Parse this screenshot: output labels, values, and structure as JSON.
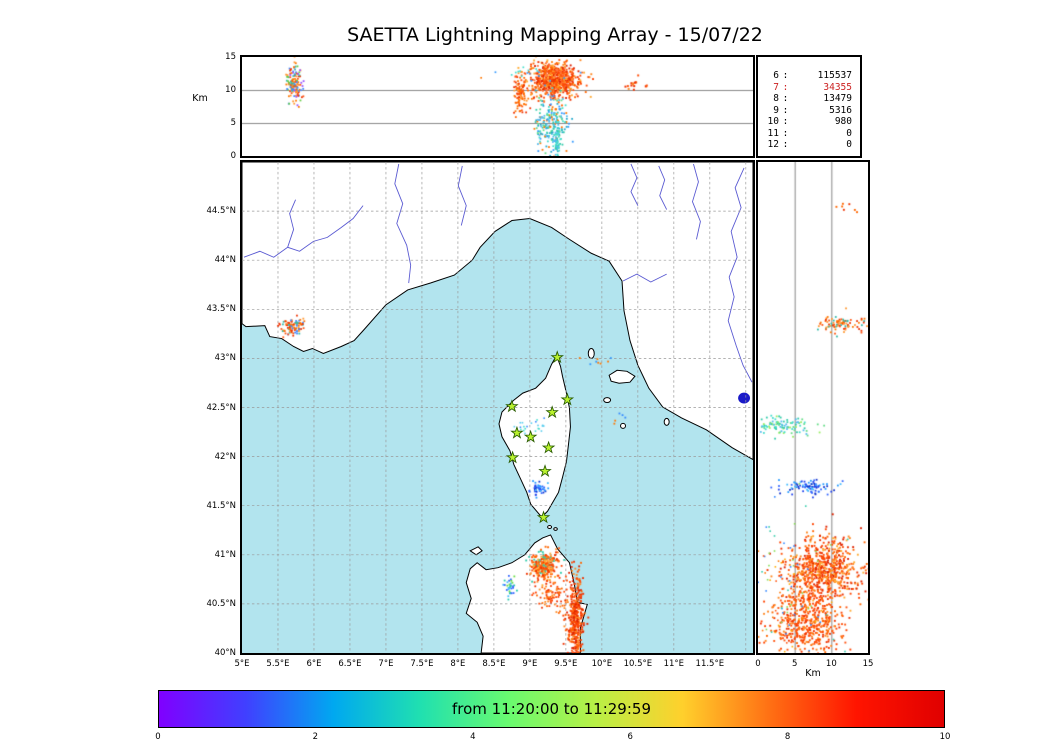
{
  "title": "SAETTA Lightning Mapping Array - 15/07/22",
  "colors": {
    "sea": "#b2e4ee",
    "land": "#ffffff",
    "coast": "#000000",
    "river": "#5a5ad2",
    "lake": "#1a1ac8",
    "grid": "#999999",
    "star_fill": "#baf22e",
    "star_edge": "#2a5d00",
    "stats_highlight": "#cc2222"
  },
  "top_panel": {
    "ylabel": "Km",
    "yticks": [
      {
        "label": "15",
        "alt": 15
      },
      {
        "label": "10",
        "alt": 10
      },
      {
        "label": "5",
        "alt": 5
      },
      {
        "label": "0",
        "alt": 0
      }
    ],
    "grid_alts": [
      5,
      10
    ]
  },
  "right_panel": {
    "xlabel": "Km",
    "xticks": [
      {
        "label": "0",
        "alt": 0
      },
      {
        "label": "5",
        "alt": 5
      },
      {
        "label": "10",
        "alt": 10
      },
      {
        "label": "15",
        "alt": 15
      }
    ],
    "grid_alts": [
      5,
      10
    ]
  },
  "stats": {
    "rows": [
      {
        "label": "6",
        "value": "115537",
        "highlight": false
      },
      {
        "label": "7",
        "value": "34355",
        "highlight": true
      },
      {
        "label": "8",
        "value": "13479",
        "highlight": false
      },
      {
        "label": "9",
        "value": "5316",
        "highlight": false
      },
      {
        "label": "10",
        "value": "980",
        "highlight": false
      },
      {
        "label": "11",
        "value": "0",
        "highlight": false
      },
      {
        "label": "12",
        "value": "0",
        "highlight": false
      }
    ]
  },
  "map": {
    "lon_ticks": [
      {
        "label": "5°E",
        "lon": 5
      },
      {
        "label": "5.5°E",
        "lon": 5.5
      },
      {
        "label": "6°E",
        "lon": 6
      },
      {
        "label": "6.5°E",
        "lon": 6.5
      },
      {
        "label": "7°E",
        "lon": 7
      },
      {
        "label": "7.5°E",
        "lon": 7.5
      },
      {
        "label": "8°E",
        "lon": 8
      },
      {
        "label": "8.5°E",
        "lon": 8.5
      },
      {
        "label": "9°E",
        "lon": 9
      },
      {
        "label": "9.5°E",
        "lon": 9.5
      },
      {
        "label": "10°E",
        "lon": 10
      },
      {
        "label": "10.5°E",
        "lon": 10.5
      },
      {
        "label": "11°E",
        "lon": 11
      },
      {
        "label": "11.5°E",
        "lon": 11.5
      }
    ],
    "lat_ticks": [
      {
        "label": "44.5°N",
        "lat": 44.5
      },
      {
        "label": "44°N",
        "lat": 44
      },
      {
        "label": "43.5°N",
        "lat": 43.5
      },
      {
        "label": "43°N",
        "lat": 43
      },
      {
        "label": "42.5°N",
        "lat": 42.5
      },
      {
        "label": "42°N",
        "lat": 42
      },
      {
        "label": "41.5°N",
        "lat": 41.5
      },
      {
        "label": "41°N",
        "lat": 41
      },
      {
        "label": "40.5°N",
        "lat": 40.5
      },
      {
        "label": "40°N",
        "lat": 40
      }
    ]
  },
  "colorbar": {
    "label": "from 11:20:00 to 11:29:59",
    "range": [
      0,
      10
    ],
    "ticks": [
      {
        "label": "0",
        "value": 0
      },
      {
        "label": "2",
        "value": 2
      },
      {
        "label": "4",
        "value": 4
      },
      {
        "label": "6",
        "value": 6
      },
      {
        "label": "8",
        "value": 8
      },
      {
        "label": "10",
        "value": 10
      }
    ],
    "gradient": [
      "#8000ff",
      "#4040ff",
      "#00a8f0",
      "#20e0b0",
      "#68fa70",
      "#b8f046",
      "#ffd02c",
      "#ff7014",
      "#ff1400",
      "#e00000"
    ]
  },
  "chart_data": {
    "type": "scatter",
    "description": "Lightning Mapping Array sources: map view (lon/lat), altitude-vs-longitude top view, altitude-vs-latitude side view, colored by time over the 10-minute window.",
    "axes": {
      "lon_range": [
        5.0,
        12.1
      ],
      "lat_range": [
        40.0,
        45.0
      ],
      "alt_range_km": [
        0,
        15
      ]
    },
    "time_window": {
      "start": "11:20:00",
      "end": "11:29:59",
      "colorbar_minutes": [
        0,
        10
      ]
    },
    "source_counts_by_min_stations": [
      {
        "stations": 6,
        "count": 115537
      },
      {
        "stations": 7,
        "count": 34355
      },
      {
        "stations": 8,
        "count": 13479
      },
      {
        "stations": 9,
        "count": 5316
      },
      {
        "stations": 10,
        "count": 980
      },
      {
        "stations": 11,
        "count": 0
      },
      {
        "stations": 12,
        "count": 0
      }
    ],
    "stations_lonlat": [
      [
        9.38,
        43.01
      ],
      [
        9.52,
        42.58
      ],
      [
        9.31,
        42.45
      ],
      [
        8.75,
        42.51
      ],
      [
        9.01,
        42.2
      ],
      [
        8.82,
        42.24
      ],
      [
        9.26,
        42.09
      ],
      [
        8.76,
        41.99
      ],
      [
        9.21,
        41.85
      ],
      [
        9.19,
        41.38
      ]
    ],
    "top_clusters": [
      {
        "x": 5.73,
        "y": 11.0,
        "sx": 0.05,
        "sy": 1.4,
        "n": 140,
        "size": 1.8,
        "colors": [
          "#ff5511",
          "#ff7700",
          "#ee3300",
          "#ff9933",
          "#4488ff",
          "#33bbaa",
          "#9955ff",
          "#66cc44"
        ]
      },
      {
        "x": 8.87,
        "y": 9.6,
        "sx": 0.045,
        "sy": 1.6,
        "n": 110,
        "size": 1.8,
        "colors": [
          "#ff5511",
          "#ff7700",
          "#ee3300",
          "#ff9933",
          "#ff6600"
        ]
      },
      {
        "x": 9.33,
        "y": 11.5,
        "sx": 0.16,
        "sy": 1.25,
        "n": 750,
        "size": 1.9,
        "colors": [
          "#ff4400",
          "#ff6600",
          "#ee3300",
          "#ff8822",
          "#dd2200",
          "#ff5511",
          "#ff7744",
          "#ffaa33"
        ]
      },
      {
        "x": 9.3,
        "y": 5.0,
        "sx": 0.13,
        "sy": 2.4,
        "n": 220,
        "size": 1.8,
        "colors": [
          "#33ccaa",
          "#44ddcc",
          "#55bbee",
          "#3399ff",
          "#66dd88",
          "#22aacc",
          "#ff7700"
        ]
      },
      {
        "x": 9.37,
        "y": 2.2,
        "sx": 0.025,
        "sy": 1.7,
        "n": 70,
        "size": 1.7,
        "colors": [
          "#44ddcc",
          "#33ccaa",
          "#55bbee"
        ]
      },
      {
        "x": 10.45,
        "y": 10.6,
        "sx": 0.1,
        "sy": 0.5,
        "n": 16,
        "size": 2.0,
        "colors": [
          "#ff5511",
          "#ee3300",
          "#ff8822"
        ]
      },
      {
        "x": 9.05,
        "y": 12.6,
        "sx": 0.3,
        "sy": 0.7,
        "n": 25,
        "size": 1.7,
        "colors": [
          "#ff7700",
          "#44ddcc",
          "#3399ff",
          "#ff5511"
        ]
      }
    ],
    "map_clusters": [
      {
        "x": 5.72,
        "y": 43.32,
        "sx": 0.075,
        "sy": 0.045,
        "n": 100,
        "size": 1.8,
        "colors": [
          "#ff5511",
          "#ff7700",
          "#ee3300",
          "#ff9933",
          "#33bbaa",
          "#4488ff"
        ]
      },
      {
        "x": 9.2,
        "y": 40.88,
        "sx": 0.1,
        "sy": 0.075,
        "n": 280,
        "size": 1.9,
        "colors": [
          "#ff4400",
          "#ff6600",
          "#ee3300",
          "#ff8822",
          "#ff5511",
          "#ffaa33",
          "#33ccaa"
        ]
      },
      {
        "x": 9.63,
        "y": 40.32,
        "sx": 0.055,
        "sy": 0.24,
        "n": 420,
        "size": 1.9,
        "colors": [
          "#ff4400",
          "#ff6600",
          "#ee3300",
          "#ff8822",
          "#dd2200",
          "#ff5511"
        ]
      },
      {
        "x": 8.73,
        "y": 40.66,
        "sx": 0.04,
        "sy": 0.06,
        "n": 32,
        "size": 1.8,
        "colors": [
          "#3366ff",
          "#22ccaa",
          "#44bbff",
          "#66dd44"
        ]
      },
      {
        "x": 9.12,
        "y": 41.67,
        "sx": 0.05,
        "sy": 0.035,
        "n": 45,
        "size": 1.8,
        "colors": [
          "#2244ee",
          "#3366ff",
          "#2299ff",
          "#1133cc",
          "#44bbff"
        ]
      },
      {
        "x": 9.05,
        "y": 42.3,
        "sx": 0.13,
        "sy": 0.035,
        "n": 22,
        "size": 1.6,
        "colors": [
          "#55ccee",
          "#3388ff",
          "#44ddcc"
        ]
      },
      {
        "x": 9.95,
        "y": 42.98,
        "sx": 0.09,
        "sy": 0.035,
        "n": 8,
        "size": 1.8,
        "colors": [
          "#ff7700",
          "#3399ff",
          "#44ddcc"
        ]
      },
      {
        "x": 9.3,
        "y": 40.6,
        "sx": 0.12,
        "sy": 0.09,
        "n": 90,
        "size": 1.8,
        "colors": [
          "#ff4400",
          "#ff6600",
          "#ee3300",
          "#ff8822"
        ]
      },
      {
        "x": 10.25,
        "y": 42.4,
        "sx": 0.05,
        "sy": 0.05,
        "n": 5,
        "size": 1.8,
        "colors": [
          "#ff7700",
          "#3388ff"
        ]
      }
    ],
    "right_clusters": [
      {
        "x": 11.2,
        "y": 43.35,
        "sx": 1.7,
        "sy": 0.04,
        "n": 90,
        "size": 1.8,
        "colors": [
          "#ff5511",
          "#ff7700",
          "#ee3300",
          "#ff9933",
          "#33bbaa"
        ]
      },
      {
        "x": 3.2,
        "y": 42.32,
        "sx": 2.1,
        "sy": 0.05,
        "n": 100,
        "size": 1.8,
        "colors": [
          "#33ccaa",
          "#44ddcc",
          "#66dd88",
          "#55bbee",
          "#99ee66"
        ]
      },
      {
        "x": 7.0,
        "y": 41.69,
        "sx": 1.9,
        "sy": 0.04,
        "n": 85,
        "size": 1.8,
        "colors": [
          "#2244ee",
          "#3366ff",
          "#2299ff",
          "#1133cc",
          "#44bbff"
        ]
      },
      {
        "x": 9.2,
        "y": 40.85,
        "sx": 2.4,
        "sy": 0.16,
        "n": 650,
        "size": 1.9,
        "colors": [
          "#ff4400",
          "#ff6600",
          "#ee3300",
          "#ff8822",
          "#dd2200",
          "#ff5511",
          "#ffaa33"
        ]
      },
      {
        "x": 6.5,
        "y": 40.33,
        "sx": 2.6,
        "sy": 0.2,
        "n": 550,
        "size": 1.9,
        "colors": [
          "#ff4400",
          "#ff6600",
          "#ee3300",
          "#ff8822",
          "#ff5511"
        ]
      },
      {
        "x": 11.3,
        "y": 44.53,
        "sx": 0.9,
        "sy": 0.03,
        "n": 7,
        "size": 1.9,
        "colors": [
          "#ee3300",
          "#ff6600"
        ]
      },
      {
        "x": 4.5,
        "y": 40.6,
        "sx": 3.2,
        "sy": 0.45,
        "n": 120,
        "size": 1.6,
        "colors": [
          "#3388ff",
          "#33ccaa",
          "#ffaa00",
          "#ff5511",
          "#88dd55",
          "#ff7700"
        ]
      }
    ]
  }
}
